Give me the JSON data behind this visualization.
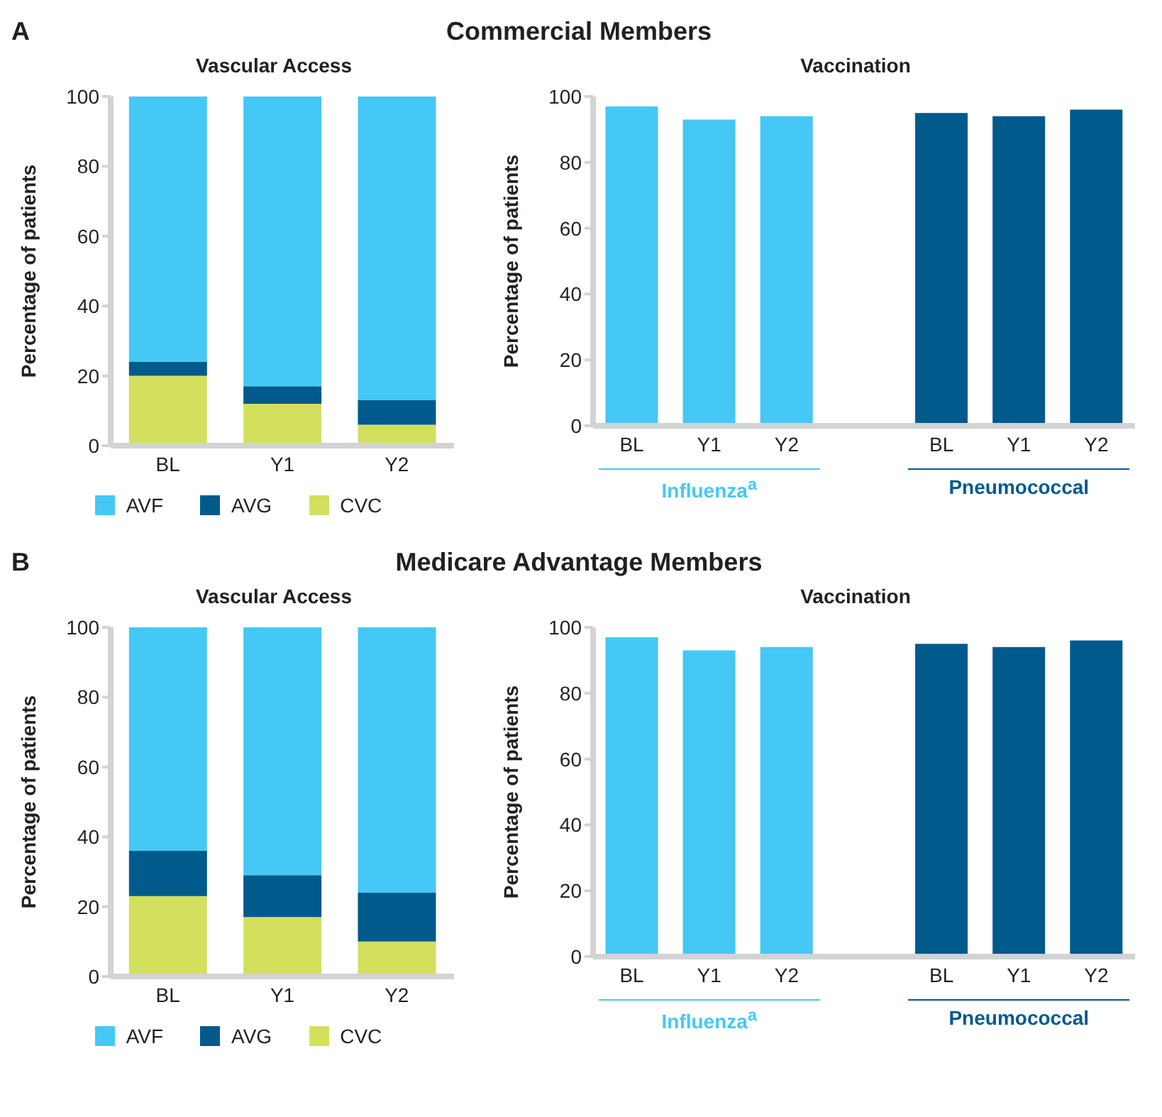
{
  "chart_data": [
    {
      "type": "bar",
      "annotations": [
        "A",
        "Commercial Members"
      ],
      "title": "Vascular Access",
      "ylabel": "Percentage of patients",
      "categories": [
        "BL",
        "Y1",
        "Y2"
      ],
      "stacked": true,
      "legend": "bottom",
      "ylim": [
        0,
        100
      ],
      "yticks": [
        0,
        20,
        40,
        60,
        80,
        100
      ],
      "series": [
        {
          "name": "CVC",
          "color": "#d2e05e",
          "values": [
            20,
            12,
            6
          ]
        },
        {
          "name": "AVG",
          "color": "#005a8c",
          "values": [
            4,
            5,
            7
          ]
        },
        {
          "name": "AVF",
          "color": "#45c8f5",
          "values": [
            76,
            83,
            87
          ]
        }
      ]
    },
    {
      "type": "bar",
      "title": "Vaccination",
      "ylabel": "Percentage of patients",
      "categories": [
        "BL",
        "Y1",
        "Y2",
        null,
        "BL",
        "Y1",
        "Y2"
      ],
      "stacked": true,
      "ylim": [
        0,
        100
      ],
      "yticks": [
        0,
        20,
        40,
        60,
        80,
        100
      ],
      "series": [
        {
          "name": "Influenza$^{a}$",
          "color": "#45c8f5",
          "values": [
            97,
            93,
            94,
            null,
            null,
            null,
            null
          ]
        },
        {
          "name": "Pneumococcal",
          "color": "#005a8c",
          "values": [
            null,
            null,
            null,
            null,
            95,
            94,
            96
          ]
        }
      ]
    },
    {
      "type": "bar",
      "annotations": [
        "B",
        "Medicare Advantage Members"
      ],
      "title": "Vascular Access",
      "ylabel": "Percentage of patients",
      "categories": [
        "BL",
        "Y1",
        "Y2"
      ],
      "stacked": true,
      "legend": "bottom",
      "ylim": [
        0,
        100
      ],
      "yticks": [
        0,
        20,
        40,
        60,
        80,
        100
      ],
      "series": [
        {
          "name": "CVC",
          "color": "#d2e05e",
          "values": [
            23,
            17,
            10
          ]
        },
        {
          "name": "AVG",
          "color": "#005a8c",
          "values": [
            13,
            12,
            14
          ]
        },
        {
          "name": "AVF",
          "color": "#45c8f5",
          "values": [
            64,
            71,
            76
          ]
        }
      ]
    },
    {
      "type": "bar",
      "title": "Vaccination",
      "ylabel": "Percentage of patients",
      "categories": [
        "BL",
        "Y1",
        "Y2",
        null,
        "BL",
        "Y1",
        "Y2"
      ],
      "stacked": true,
      "ylim": [
        0,
        100
      ],
      "yticks": [
        0,
        20,
        40,
        60,
        80,
        100
      ],
      "series": [
        {
          "name": "Influenza$^{a}$",
          "color": "#45c8f5",
          "values": [
            97,
            93,
            94,
            null,
            null,
            null,
            null
          ]
        },
        {
          "name": "Pneumococcal",
          "color": "#005a8c",
          "values": [
            null,
            null,
            null,
            null,
            95,
            94,
            96
          ]
        }
      ]
    }
  ]
}
